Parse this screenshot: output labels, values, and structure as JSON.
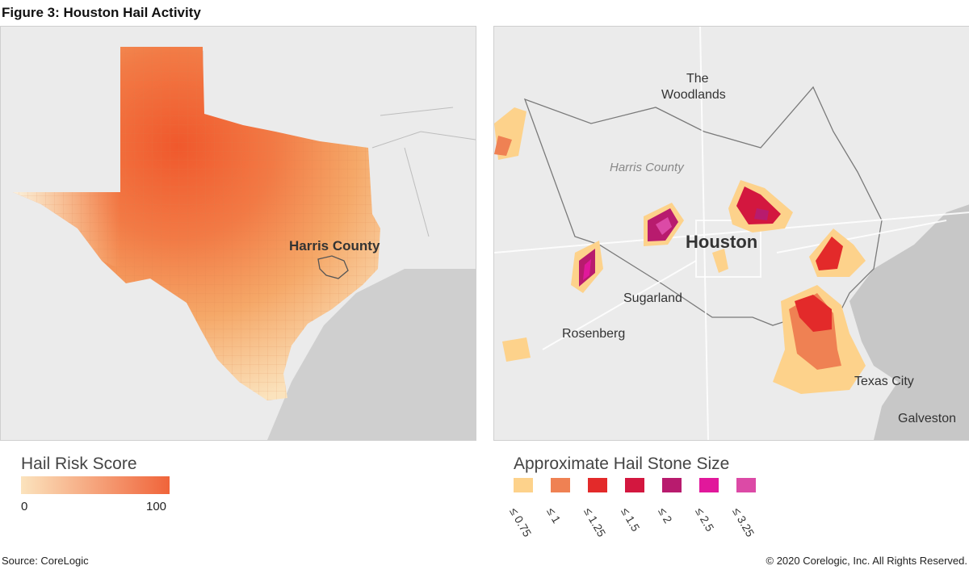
{
  "figure_title": "Figure 3: Houston Hail Activity",
  "left_map": {
    "county_label": "Harris County"
  },
  "right_map": {
    "labels": {
      "the": "The",
      "woodlands": "Woodlands",
      "harris_county": "Harris County",
      "houston": "Houston",
      "sugarland": "Sugarland",
      "rosenberg": "Rosenberg",
      "texas_city": "Texas City",
      "galveston": "Galveston"
    }
  },
  "risk_legend": {
    "title": "Hail Risk Score",
    "min_label": "0",
    "max_label": "100",
    "color_low": "#fbe3bd",
    "color_high": "#f0643a"
  },
  "size_legend": {
    "title": "Approximate Hail Stone Size",
    "items": [
      {
        "label": "≤ 0.75",
        "color": "#fdd28b"
      },
      {
        "label": "≤ 1",
        "color": "#ef8153"
      },
      {
        "label": "≤ 1.25",
        "color": "#e32a2a"
      },
      {
        "label": "≤ 1.5",
        "color": "#d3173f"
      },
      {
        "label": "≤ 2",
        "color": "#b81b6e"
      },
      {
        "label": "≤ 2.5",
        "color": "#e1189b"
      },
      {
        "label": "≤ 3.25",
        "color": "#dc4aa6"
      }
    ]
  },
  "footer": {
    "source": "Source: CoreLogic",
    "copyright": "© 2020 Corelogic, Inc. All Rights Reserved."
  }
}
